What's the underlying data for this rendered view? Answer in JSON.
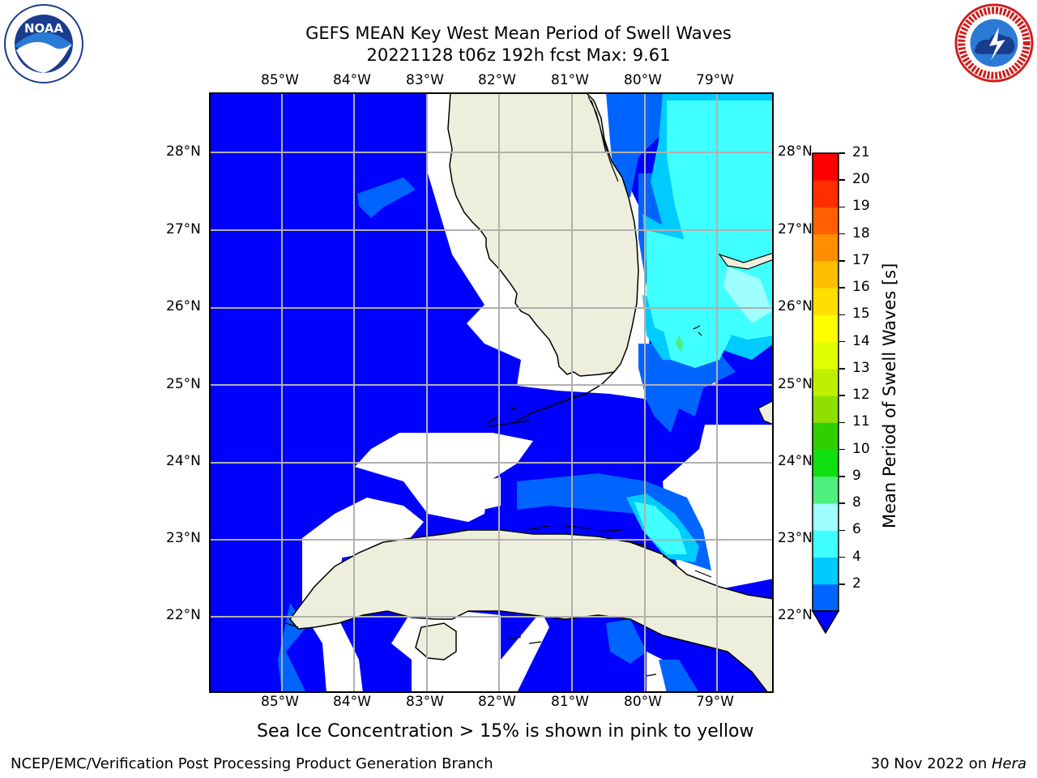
{
  "header": {
    "title_line1": "GEFS MEAN Key West Mean Period of Swell Waves",
    "title_line2": "20221128 t06z 192h fcst   Max: 9.61"
  },
  "logos": {
    "left": {
      "name": "noaa-logo",
      "text": "NOAA",
      "ring_text": "NATIONAL OCEANIC AND ATMOSPHERIC ADMINISTRATION · U.S. DEPARTMENT OF COMMERCE"
    },
    "right": {
      "name": "nws-logo",
      "ring_text": "NATIONAL WEATHER SERVICE"
    }
  },
  "map": {
    "lon_labels": [
      "85°W",
      "84°W",
      "83°W",
      "82°W",
      "81°W",
      "80°W",
      "79°W"
    ],
    "lat_labels": [
      "28°N",
      "27°N",
      "26°N",
      "25°N",
      "24°N",
      "23°N",
      "22°N"
    ],
    "extent": {
      "lon_min": -86.0,
      "lon_max": -78.25,
      "lat_min": 21.0,
      "lat_max": 28.8
    },
    "colors": {
      "land": "#eeeedd",
      "no_data": "#ffffff",
      "gridline": "#b0b0b0",
      "coast": "#000000"
    }
  },
  "colorbar": {
    "label": "Mean Period of Swell Waves [s]",
    "ticks": [
      "21",
      "20",
      "19",
      "18",
      "17",
      "16",
      "15",
      "14",
      "13",
      "12",
      "11",
      "10",
      "9",
      "8",
      "6",
      "4",
      "2"
    ],
    "levels": [
      2,
      4,
      6,
      8,
      9,
      10,
      11,
      12,
      13,
      14,
      15,
      16,
      17,
      18,
      19,
      20,
      21
    ],
    "colors": [
      "#0065ff",
      "#00cbff",
      "#3fffff",
      "#9fffff",
      "#4fef7f",
      "#10df10",
      "#2fcf00",
      "#8fdf00",
      "#bfef00",
      "#dfff00",
      "#ffff00",
      "#ffdf00",
      "#ffbf00",
      "#ff8f00",
      "#ff5f00",
      "#ff2f00",
      "#ff0000"
    ],
    "extend_color": "#0000ff"
  },
  "caption": "Sea Ice Concentration > 15% is shown in pink to yellow",
  "footer": {
    "left": "NCEP/EMC/Verification Post Processing Product Generation Branch",
    "right_date": "30 Nov 2022 on ",
    "right_machine": "Hera"
  }
}
